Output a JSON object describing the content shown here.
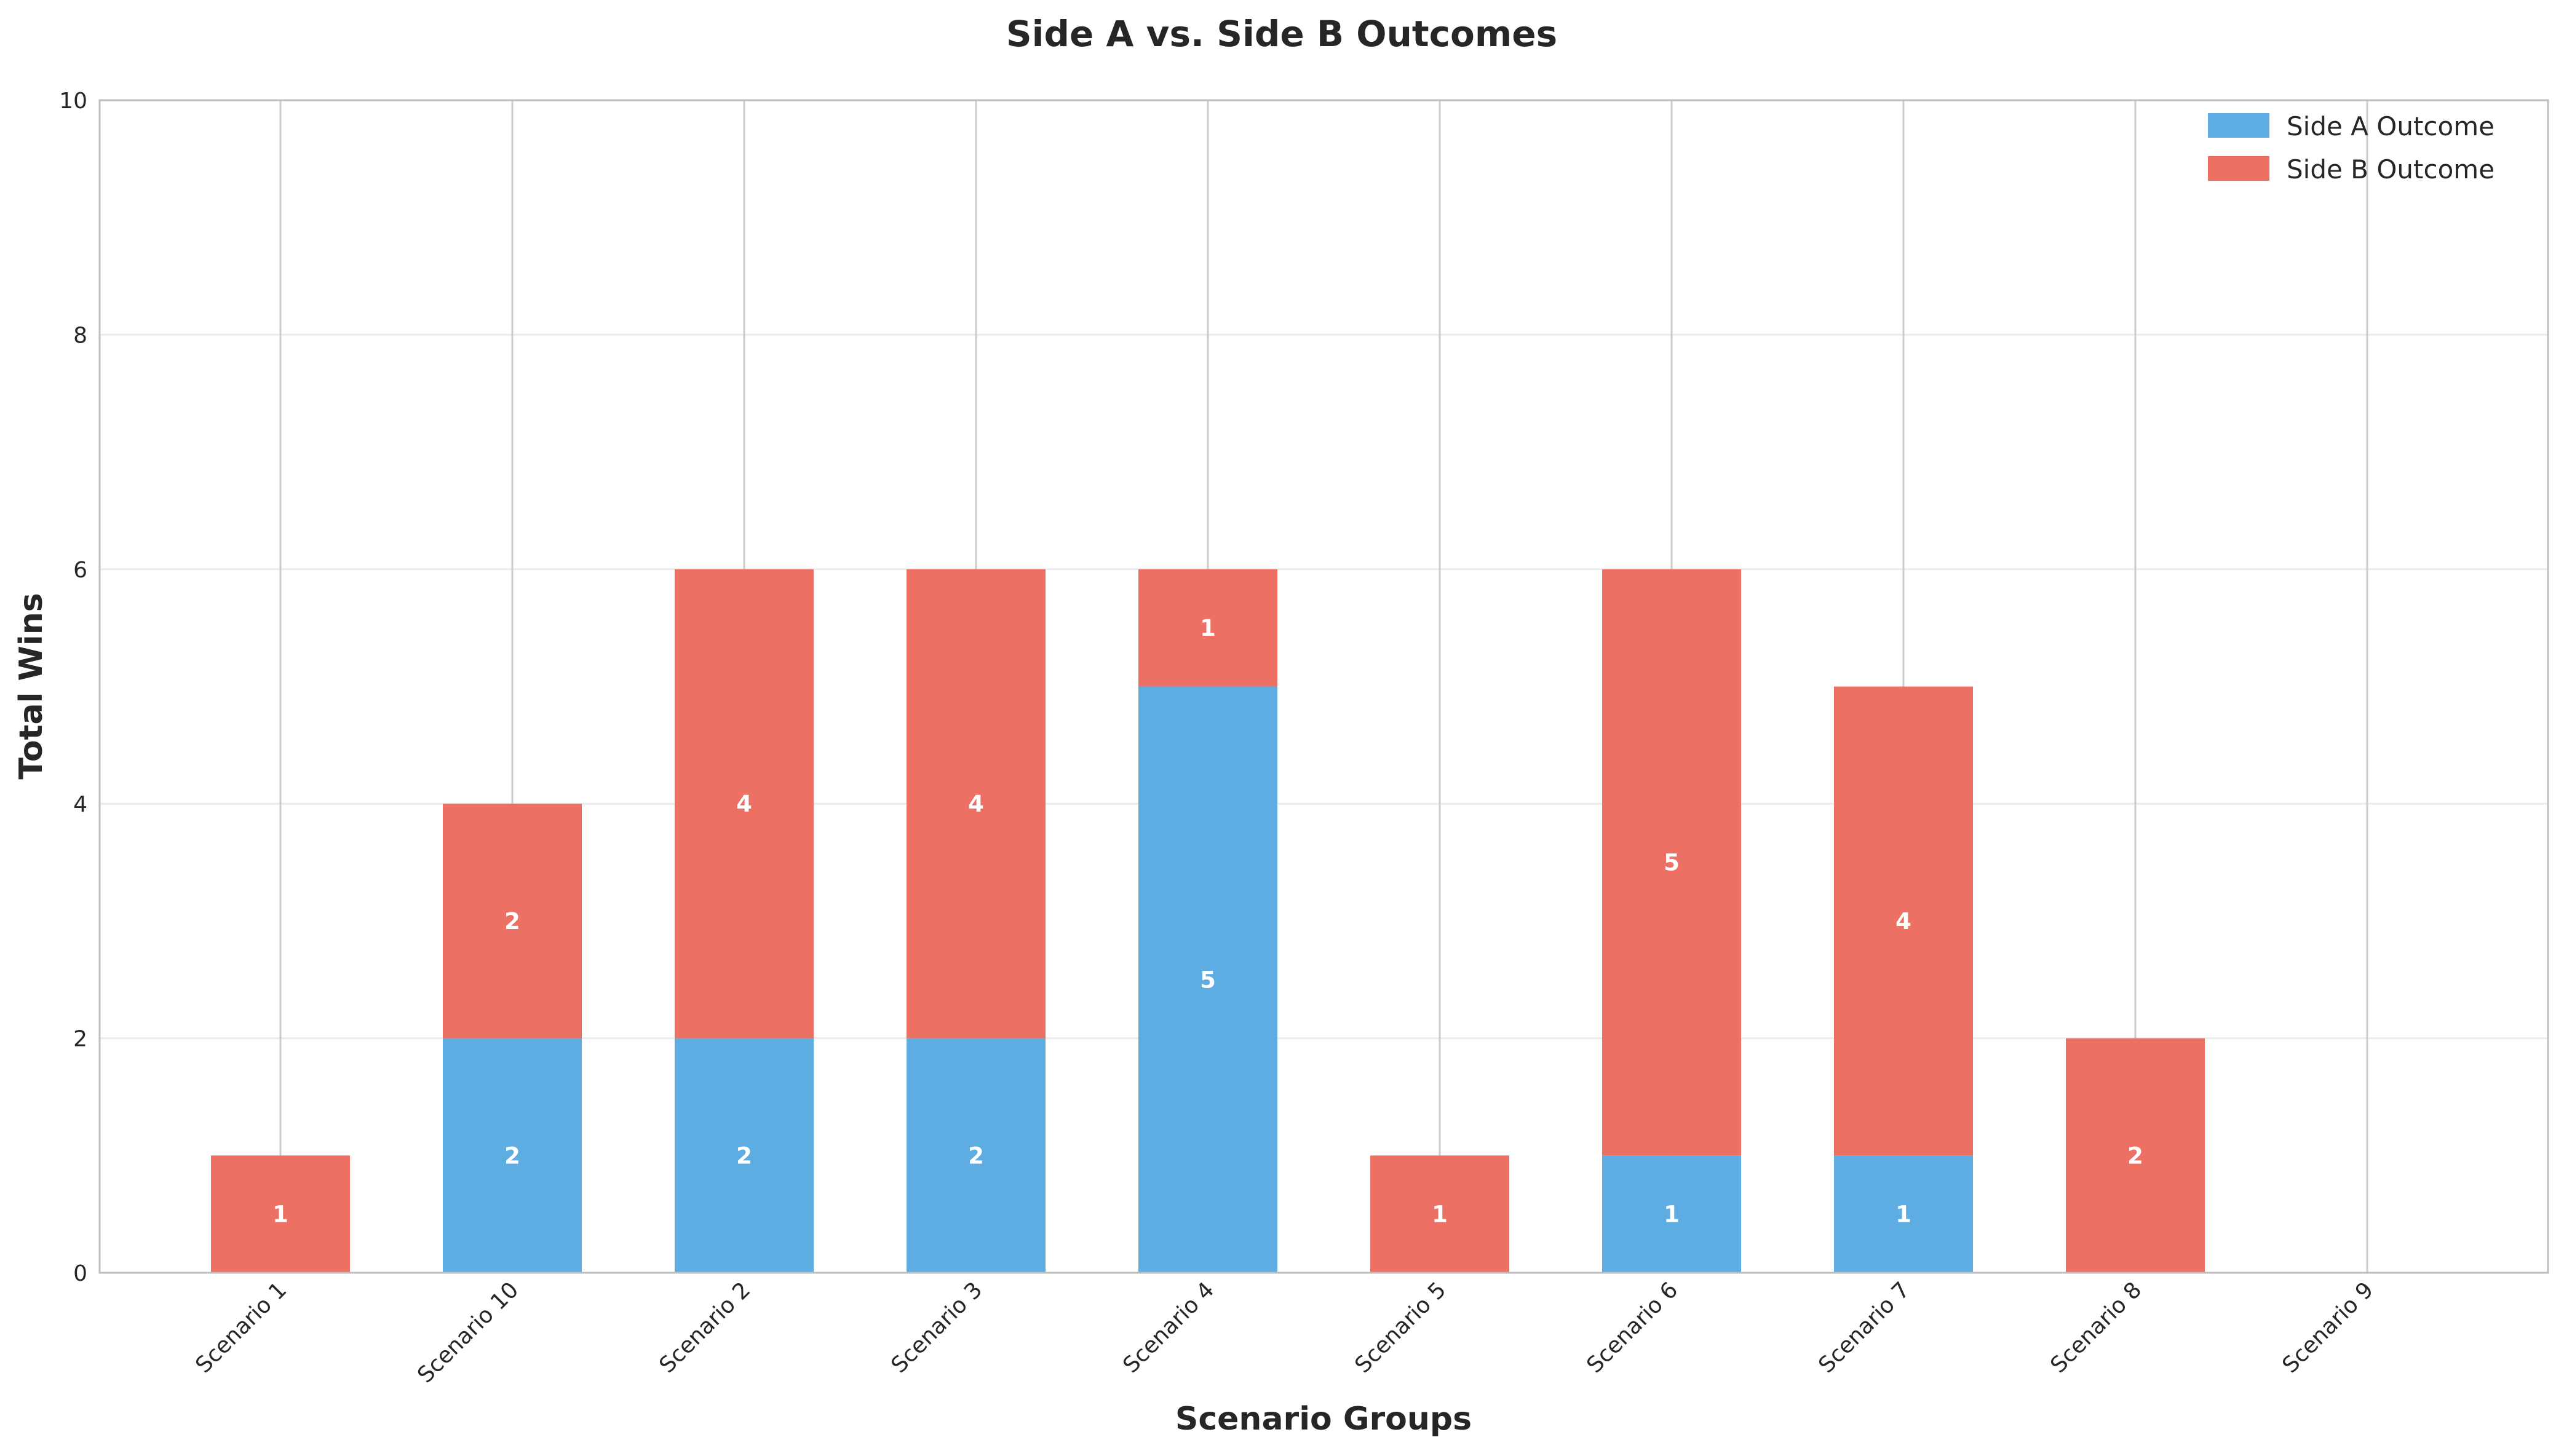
{
  "chart_data": {
    "type": "bar",
    "stacked": true,
    "title": "Side A vs. Side B Outcomes",
    "xlabel": "Scenario Groups",
    "ylabel": "Total Wins",
    "categories": [
      "Scenario 1",
      "Scenario 10",
      "Scenario 2",
      "Scenario 3",
      "Scenario 4",
      "Scenario 5",
      "Scenario 6",
      "Scenario 7",
      "Scenario 8",
      "Scenario 9"
    ],
    "series": [
      {
        "name": "Side A Outcome",
        "color": "#5dade2",
        "values": [
          0,
          2,
          2,
          2,
          5,
          0,
          1,
          1,
          0,
          0
        ]
      },
      {
        "name": "Side B Outcome",
        "color": "#ec7063",
        "values": [
          1,
          2,
          4,
          4,
          1,
          1,
          5,
          4,
          2,
          0
        ]
      }
    ],
    "ylim": [
      0,
      10
    ],
    "yticks": [
      0,
      2,
      4,
      6,
      8,
      10
    ],
    "grid": true,
    "legend_position": "top-right"
  }
}
